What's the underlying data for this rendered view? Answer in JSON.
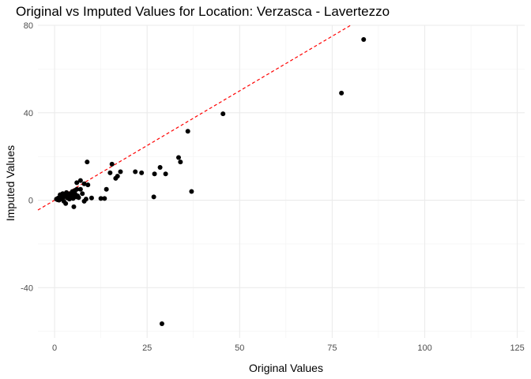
{
  "chart_data": {
    "type": "scatter",
    "title": "Original vs Imputed Values for Location: Verzasca - Lavertezzo",
    "xlabel": "Original Values",
    "ylabel": "Imputed Values",
    "xlim": [
      -4.5,
      127
    ],
    "ylim": [
      -63,
      80
    ],
    "x_ticks": [
      0,
      25,
      50,
      75,
      100,
      125
    ],
    "y_ticks": [
      -40,
      0,
      40,
      80
    ],
    "x_tick_labels": [
      "0",
      "25",
      "50",
      "75",
      "100",
      "125"
    ],
    "y_tick_labels": [
      "-40",
      "0",
      "40",
      "80"
    ],
    "grid": true,
    "legend": "none",
    "reference_line": {
      "slope": 1,
      "intercept": 0,
      "style": "dashed",
      "color": "#ff0000"
    },
    "point_color": "#000000",
    "points": [
      [
        0.5,
        0.5
      ],
      [
        0.8,
        0.2
      ],
      [
        1.0,
        1.0
      ],
      [
        1.2,
        0.0
      ],
      [
        1.5,
        0.8
      ],
      [
        1.5,
        2.5
      ],
      [
        1.8,
        1.2
      ],
      [
        2.0,
        0.5
      ],
      [
        2.2,
        3.0
      ],
      [
        2.5,
        1.5
      ],
      [
        2.5,
        -0.5
      ],
      [
        3.0,
        2.0
      ],
      [
        3.0,
        -1.5
      ],
      [
        3.2,
        3.5
      ],
      [
        3.5,
        1.0
      ],
      [
        3.8,
        2.8
      ],
      [
        4.0,
        0.5
      ],
      [
        4.2,
        3.0
      ],
      [
        4.5,
        1.5
      ],
      [
        4.8,
        4.0
      ],
      [
        5.0,
        0.8
      ],
      [
        5.0,
        2.5
      ],
      [
        5.2,
        -3.0
      ],
      [
        5.5,
        4.5
      ],
      [
        5.5,
        3.0
      ],
      [
        5.8,
        1.5
      ],
      [
        6.0,
        5.0
      ],
      [
        6.0,
        8.0
      ],
      [
        6.2,
        2.0
      ],
      [
        6.5,
        1.2
      ],
      [
        7.0,
        9.0
      ],
      [
        7.0,
        5.0
      ],
      [
        7.5,
        3.0
      ],
      [
        8.0,
        7.5
      ],
      [
        8.0,
        -0.5
      ],
      [
        8.5,
        0.5
      ],
      [
        8.8,
        17.5
      ],
      [
        9.0,
        7.0
      ],
      [
        10.0,
        1.0
      ],
      [
        12.5,
        0.8
      ],
      [
        13.5,
        0.8
      ],
      [
        14.0,
        5.0
      ],
      [
        15.0,
        12.5
      ],
      [
        15.5,
        16.5
      ],
      [
        16.5,
        10.0
      ],
      [
        17.0,
        11.0
      ],
      [
        17.8,
        13.0
      ],
      [
        21.8,
        13.0
      ],
      [
        23.5,
        12.5
      ],
      [
        26.8,
        1.5
      ],
      [
        27.0,
        12.0
      ],
      [
        28.5,
        15.0
      ],
      [
        30.0,
        12.0
      ],
      [
        29.0,
        -56.5
      ],
      [
        33.5,
        19.5
      ],
      [
        34.0,
        17.5
      ],
      [
        36.0,
        31.5
      ],
      [
        37.0,
        4.0
      ],
      [
        45.5,
        39.5
      ],
      [
        77.5,
        49.0
      ],
      [
        83.5,
        73.5
      ]
    ]
  }
}
